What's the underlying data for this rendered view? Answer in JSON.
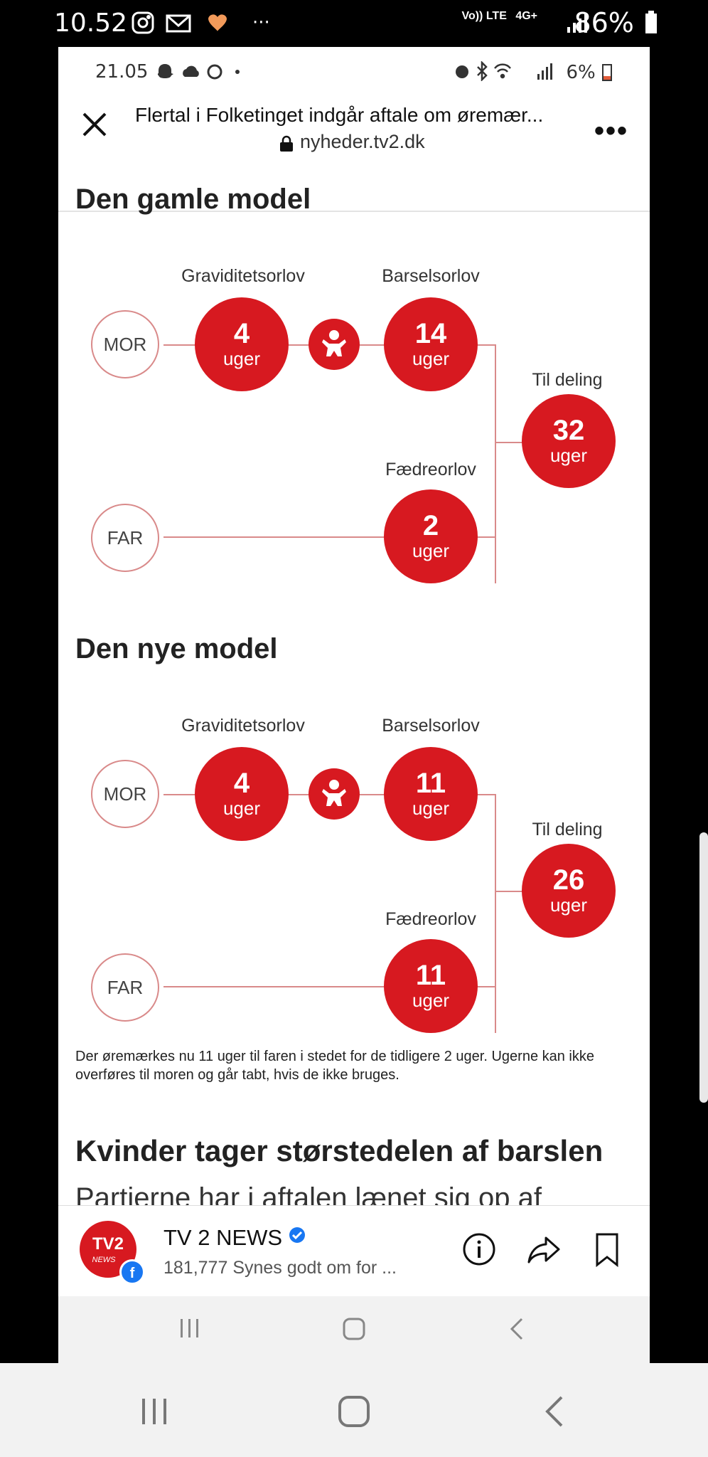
{
  "outer_status": {
    "time": "10.52",
    "network": "4G+",
    "network_sub": "Vo)) LTE",
    "battery": "86%"
  },
  "inner_status": {
    "time": "21.05",
    "battery": "6%"
  },
  "browser": {
    "title": "Flertal i Folketinget indgår aftale om øremær...",
    "url": "nyheder.tv2.dk"
  },
  "old_model": {
    "heading": "Den gamle model",
    "mor": "MOR",
    "far": "FAR",
    "pregnancy_label": "Graviditetsorlov",
    "pregnancy_weeks": "4",
    "maternity_label": "Barselsorlov",
    "maternity_weeks": "14",
    "shared_label": "Til deling",
    "shared_weeks": "32",
    "paternity_label": "Fædreorlov",
    "paternity_weeks": "2",
    "unit": "uger"
  },
  "new_model": {
    "heading": "Den nye model",
    "mor": "MOR",
    "far": "FAR",
    "pregnancy_label": "Graviditetsorlov",
    "pregnancy_weeks": "4",
    "maternity_label": "Barselsorlov",
    "maternity_weeks": "11",
    "shared_label": "Til deling",
    "shared_weeks": "26",
    "paternity_label": "Fædreorlov",
    "paternity_weeks": "11",
    "unit": "uger"
  },
  "caption": "Der øremærkes nu 11 uger til faren i stedet for de tidligere 2 uger. Ugerne kan ikke overføres til moren og går tabt, hvis de ikke bruges.",
  "next_heading": "Kvinder tager størstedelen af barslen",
  "cut_text": "Partierne har i aftalen lænet sig op af",
  "fb": {
    "page_name": "TV 2 NEWS",
    "likes": "181,777 Synes godt om for ...",
    "logo_text": "TV2",
    "logo_sub": "NEWS"
  },
  "accent": "#d71920"
}
